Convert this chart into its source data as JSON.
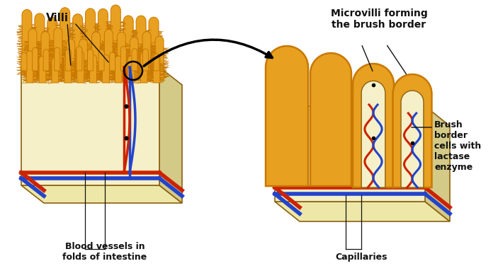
{
  "colors": {
    "bg_color": "#ffffff",
    "golden_orange": "#E8A020",
    "dark_orange": "#C87800",
    "light_yellow": "#F5F0C8",
    "cream": "#EEE8A8",
    "side_face": "#D4CA88",
    "red_vessel": "#CC2200",
    "blue_vessel": "#2244CC",
    "dark_outline": "#8B6010",
    "text_color": "#111111"
  },
  "labels": {
    "villi": "Villi",
    "blood_vessels": "Blood vessels in\nfolds of intestine",
    "microvilli": "Microvilli forming\nthe brush border",
    "brush_border": "Brush\nborder\ncells with\nlactase\nenzyme",
    "capillaries": "Capillaries"
  }
}
